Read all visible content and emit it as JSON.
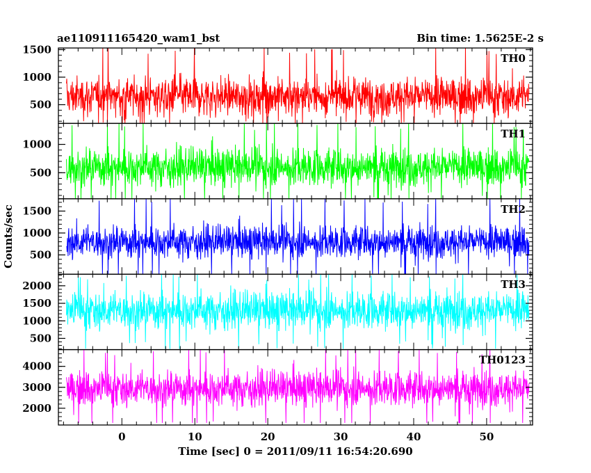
{
  "header": {
    "title": "ae110911165420_wam1_bst",
    "bin_time": "Bin time: 1.5625E-2 s"
  },
  "axes": {
    "xlabel": "Time [sec] 0 = 2011/09/11 16:54:20.690",
    "ylabel": "Counts/sec"
  },
  "chart_data": {
    "type": "line",
    "xlim": [
      -8.7,
      56.3
    ],
    "x_data_range": [
      -7.6,
      55.8
    ],
    "x_ticks": [
      0,
      10,
      20,
      30,
      40,
      50
    ],
    "x_tick_labels": [
      "0",
      "10",
      "20",
      "30",
      "40",
      "50"
    ],
    "line_style": "histogram-step, very dense (bin 1.5625E-2 s)",
    "panels": [
      {
        "name": "TH0",
        "color": "#ff0000",
        "ylim": [
          160,
          1530
        ],
        "y_ticks": [
          500,
          1000,
          1500
        ],
        "y_tick_labels": [
          "500",
          "1000",
          "1500"
        ],
        "typical_range": [
          150,
          1200
        ],
        "mean": 650,
        "min": 150,
        "max": 1550
      },
      {
        "name": "TH1",
        "color": "#00ff00",
        "ylim": [
          40,
          1370
        ],
        "y_ticks": [
          500,
          1000
        ],
        "y_tick_labels": [
          "500",
          "1000"
        ],
        "typical_range": [
          100,
          1100
        ],
        "mean": 600,
        "min": 40,
        "max": 1370
      },
      {
        "name": "TH2",
        "color": "#0000ff",
        "ylim": [
          60,
          1780
        ],
        "y_ticks": [
          500,
          1000,
          1500
        ],
        "y_tick_labels": [
          "500",
          "1000",
          "1500"
        ],
        "typical_range": [
          250,
          1350
        ],
        "mean": 800,
        "min": 60,
        "max": 1780
      },
      {
        "name": "TH3",
        "color": "#00ffff",
        "ylim": [
          180,
          2330
        ],
        "y_ticks": [
          500,
          1000,
          1500,
          2000
        ],
        "y_tick_labels": [
          "500",
          "1000",
          "1500",
          "2000"
        ],
        "typical_range": [
          500,
          2100
        ],
        "mean": 1300,
        "min": 200,
        "max": 2330
      },
      {
        "name": "TH0123",
        "color": "#ff00ff",
        "ylim": [
          1200,
          4800
        ],
        "y_ticks": [
          2000,
          3000,
          4000
        ],
        "y_tick_labels": [
          "2000",
          "3000",
          "4000"
        ],
        "typical_range": [
          1700,
          4200
        ],
        "mean": 2950,
        "min": 1300,
        "max": 4800
      }
    ]
  }
}
